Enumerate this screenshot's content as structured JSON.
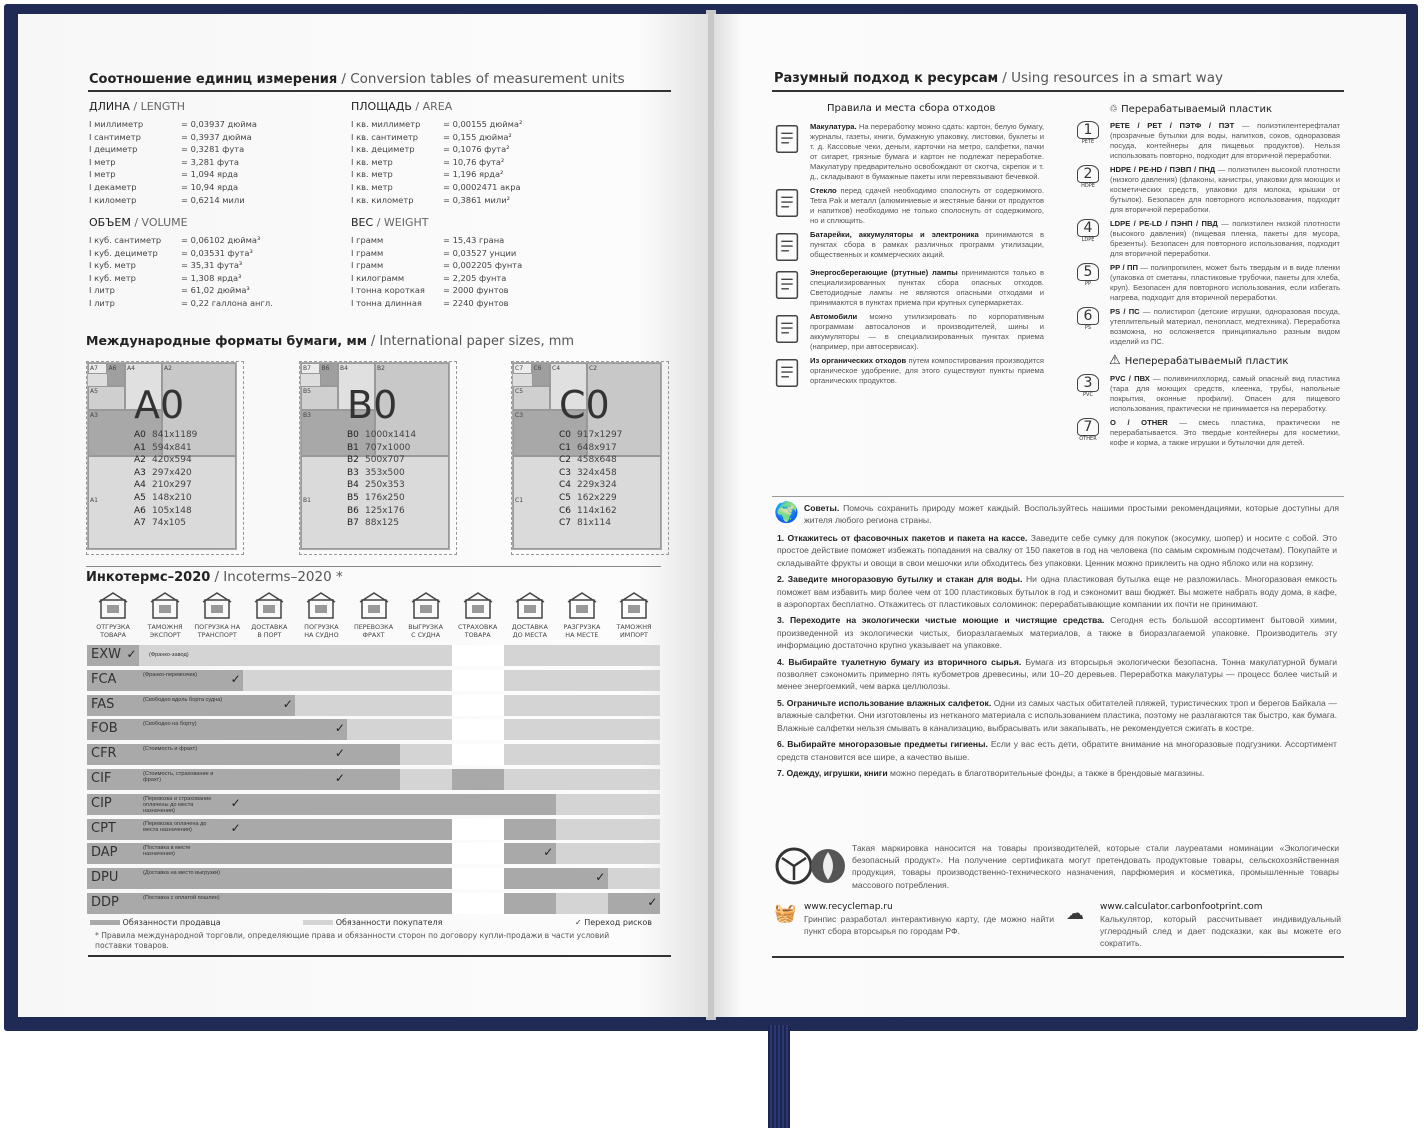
{
  "colors": {
    "cover": "#1f2a55",
    "seller": "#a9a9a9",
    "buyer": "#d4d4d4",
    "none": "#ffffff"
  },
  "left": {
    "title_ru": "Соотношение единиц измерения",
    "title_en": "/ Conversion tables of measurement units",
    "length": {
      "ru": "ДЛИНА",
      "en": "/ LENGTH",
      "rows": [
        [
          "I миллиметр",
          "= 0,03937 дюйма"
        ],
        [
          "I сантиметр",
          "= 0,3937 дюйма"
        ],
        [
          "I дециметр",
          "= 0,3281 фута"
        ],
        [
          "I метр",
          "= 3,281 фута"
        ],
        [
          "I метр",
          "= 1,094 ярда"
        ],
        [
          "I декаметр",
          "= 10,94 ярда"
        ],
        [
          "I километр",
          "= 0,6214 мили"
        ]
      ]
    },
    "area": {
      "ru": "ПЛОЩАДЬ",
      "en": "/ AREA",
      "rows": [
        [
          "I кв. миллиметр",
          "= 0,00155 дюйма²"
        ],
        [
          "I кв. сантиметр",
          "= 0,155 дюйма²"
        ],
        [
          "I кв. дециметр",
          "= 0,1076 фута²"
        ],
        [
          "I кв. метр",
          "= 10,76 фута²"
        ],
        [
          "I кв. метр",
          "= 1,196 ярда²"
        ],
        [
          "I кв. метр",
          "= 0,0002471 акра"
        ],
        [
          "I кв. километр",
          "= 0,3861 мили²"
        ]
      ]
    },
    "volume": {
      "ru": "ОБЪЕМ",
      "en": "/ VOLUME",
      "rows": [
        [
          "I куб. сантиметр",
          "= 0,06102 дюйма³"
        ],
        [
          "I куб. дециметр",
          "= 0,03531 фута³"
        ],
        [
          "I куб. метр",
          "= 35,31 фута³"
        ],
        [
          "I куб. метр",
          "= 1,308 ярда³"
        ],
        [
          "I литр",
          "= 61,02 дюйма³"
        ],
        [
          "I литр",
          "= 0,22 галлона англ."
        ]
      ]
    },
    "weight": {
      "ru": "ВЕС",
      "en": "/ WEIGHT",
      "rows": [
        [
          "I грамм",
          "= 15,43 грана"
        ],
        [
          "I грамм",
          "= 0,03527 унции"
        ],
        [
          "I грамм",
          "= 0,002205 фунта"
        ],
        [
          "I килограмм",
          "= 2,205 фунта"
        ],
        [
          "I тонна короткая",
          "= 2000 фунтов"
        ],
        [
          "I тонна длинная",
          "= 2240 фунтов"
        ]
      ]
    },
    "paper_title_ru": "Международные форматы бумаги, мм",
    "paper_title_en": "/ International paper sizes, mm",
    "papers": [
      {
        "letter": "A",
        "big": "A0",
        "sizes": [
          [
            "A0",
            "841x1189"
          ],
          [
            "A1",
            "594x841"
          ],
          [
            "A2",
            "420x594"
          ],
          [
            "A3",
            "297x420"
          ],
          [
            "A4",
            "210x297"
          ],
          [
            "A5",
            "148x210"
          ],
          [
            "A6",
            "105x148"
          ],
          [
            "A7",
            "74x105"
          ]
        ]
      },
      {
        "letter": "B",
        "big": "B0",
        "sizes": [
          [
            "B0",
            "1000x1414"
          ],
          [
            "B1",
            "707x1000"
          ],
          [
            "B2",
            "500x707"
          ],
          [
            "B3",
            "353x500"
          ],
          [
            "B4",
            "250x353"
          ],
          [
            "B5",
            "176x250"
          ],
          [
            "B6",
            "125x176"
          ],
          [
            "B7",
            "88x125"
          ]
        ]
      },
      {
        "letter": "C",
        "big": "C0",
        "sizes": [
          [
            "C0",
            "917x1297"
          ],
          [
            "C1",
            "648x917"
          ],
          [
            "C2",
            "458x648"
          ],
          [
            "C3",
            "324x458"
          ],
          [
            "C4",
            "229x324"
          ],
          [
            "C5",
            "162x229"
          ],
          [
            "C6",
            "114x162"
          ],
          [
            "C7",
            "81x114"
          ]
        ]
      }
    ],
    "inco_title_ru": "Инкотермс–2020",
    "inco_title_en": "/ Incoterms–2020 *",
    "steps": [
      [
        "ОТГРУЗКА",
        "ТОВАРА",
        "factory-icon"
      ],
      [
        "ТАМОЖНЯ",
        "ЭКСПОРТ",
        "customs-icon"
      ],
      [
        "ПОГРУЗКА НА",
        "ТРАНСПОРТ",
        "hand-truck-icon"
      ],
      [
        "ДОСТАВКА",
        "В ПОРТ",
        "truck-icon"
      ],
      [
        "ПОГРУЗКА",
        "НА СУДНО",
        "crane-icon"
      ],
      [
        "ПЕРЕВОЗКА",
        "ФРАХТ",
        "ship-icon"
      ],
      [
        "ВЫГРУЗКА",
        "С СУДНА",
        "crane-unload-icon"
      ],
      [
        "СТРАХОВКА",
        "ТОВАРА",
        "umbrella-icon"
      ],
      [
        "ДОСТАВКА",
        "ДО МЕСТА",
        "truck-icon"
      ],
      [
        "РАЗГРУЗКА",
        "НА МЕСТЕ",
        "boxes-icon"
      ],
      [
        "ТАМОЖНЯ",
        "ИМПОРТ",
        "customs-icon"
      ]
    ],
    "terms": [
      {
        "code": "EXW",
        "desc": "(Франко-завод)",
        "cells": "sbbbbbbwbbb",
        "risk": 1
      },
      {
        "code": "FCA",
        "desc": "(Франко-перевозчик)",
        "cells": "sssbbbbwbbb",
        "risk": 3
      },
      {
        "code": "FAS",
        "desc": "(Свободно вдоль борта судна)",
        "cells": "ssssbbbwbbb",
        "risk": 4
      },
      {
        "code": "FOB",
        "desc": "(Свободно на борту)",
        "cells": "sssssbbwbbb",
        "risk": 5
      },
      {
        "code": "CFR",
        "desc": "(Стоимость и фрахт)",
        "cells": "ssssssbwbbb",
        "risk": 5
      },
      {
        "code": "CIF",
        "desc": "(Стоимость, страхование и фрахт)",
        "cells": "ssssssbsbbb",
        "risk": 5
      },
      {
        "code": "CIP",
        "desc": "(Перевозка и страхование оплачены до места назначения)",
        "cells": "sssssssssbb",
        "risk": 3
      },
      {
        "code": "CPT",
        "desc": "(Перевозка оплачена до места назначения)",
        "cells": "ssssssswsbb",
        "risk": 3
      },
      {
        "code": "DAP",
        "desc": "(Поставка в месте назначения)",
        "cells": "ssssssswsbb",
        "risk": 9
      },
      {
        "code": "DPU",
        "desc": "(Доставка на место выгрузки)",
        "cells": "ssssssswssb",
        "risk": 10
      },
      {
        "code": "DDP",
        "desc": "(Поставка с оплатой пошлин)",
        "cells": "ssssssswsbs",
        "risk": 11
      }
    ],
    "legend": {
      "seller": "Обязанности продавца",
      "buyer": "Обязанности покупателя",
      "risk": "✓ Переход рисков"
    },
    "footnote": "* Правила международной торговли, определяющие права и обязанности сторон по договору купли-продажи в части условий поставки товаров."
  },
  "right": {
    "title_ru": "Разумный подход к ресурсам",
    "title_en": "/ Using resources in a smart way",
    "waste_title": "Правила и места сбора отходов",
    "waste": [
      {
        "icon": "paper-icon",
        "bold": "Макулатура.",
        "text": " На переработку можно сдать: картон, белую бумагу, журналы, газеты, книги, бумажную упаковку, листовки, буклеты и т. д. Кассовые чеки, деньги, карточки на метро, салфетки, пачки от сигарет, грязные бумага и картон не подлежат переработке. Макулатуру предварительно освобождают от скотча, скрепок и т. д., складывают в бумажные пакеты или перевязывают бечевкой."
      },
      {
        "icon": "bottles-icon",
        "bold": "Стекло",
        "text": " перед сдачей необходимо сполоснуть от содержимого. Tetra Pak и металл (алюминиевые и жестяные банки от продуктов и напитков) необходимо не только сполоснуть от содержимого, но и сплющить."
      },
      {
        "icon": "battery-icon",
        "bold": "Батарейки, аккумуляторы и электроника",
        "text": " принимаются в пунктах сбора в рамках различных программ утилизации, общественных и коммерческих акций."
      },
      {
        "icon": "lamp-icon",
        "bold": "Энергосберегающие (ртутные) лампы",
        "text": " принимаются только в специализированных пунктах сбора опасных отходов. Светодиодные лампы не являются опасными отходами и принимаются в пунктах приема при крупных супермаркетах."
      },
      {
        "icon": "car-icon",
        "bold": "Автомобили",
        "text": " можно утилизировать по корпоративным программам автосалонов и производителей, шины и аккумуляторы — в специализированных пунктах приема (например, при автосервисах)."
      },
      {
        "icon": "banana-icon",
        "bold": "Из органических отходов",
        "text": " путем компостирования производится органическое удобрение, для этого существуют пункты приема органических продуктов."
      }
    ],
    "plastic_title": "Перерабатываемый пластик",
    "plastics": [
      {
        "num": "1",
        "code": "PETE",
        "bold": "PETE / PET / ПЭТФ / ПЭТ",
        "text": " — полиэтилентерефталат (прозрачные бутылки для воды, напитков, соков, одноразовая посуда, контейнеры для пищевых продуктов). Нельзя использовать повторно, подходит для вторичной переработки."
      },
      {
        "num": "2",
        "code": "HDPE",
        "bold": "HDPE / PE-HD / ПЭВП / ПНД",
        "text": " — полиэтилен высокой плотности (низкого давления) (флаконы, канистры, упаковки для моющих и косметических средств, упаковки для молока, крышки от бутылок). Безопасен для повторного использования, подходит для вторичной переработки."
      },
      {
        "num": "4",
        "code": "LDPE",
        "bold": "LDPE / PE-LD / ПЭНП / ПВД",
        "text": " — полиэтилен низкой плотности (высокого давления) (пищевая пленка, пакеты для мусора, брезенты). Безопасен для повторного использования, подходит для вторичной переработки."
      },
      {
        "num": "5",
        "code": "PP",
        "bold": "PP / ПП",
        "text": " — полипропилен, может быть твердым и в виде пленки (упаковка от сметаны, пластиковые трубочки, пакеты для хлеба, круп). Безопасен для повторного использования, если избегать нагрева, подходит для вторичной переработки."
      },
      {
        "num": "6",
        "code": "PS",
        "bold": "PS / ПС",
        "text": " — полистирол (детские игрушки, одноразовая посуда, утеплительный материал, пенопласт, медтехника). Переработка возможна, но осложняется принципиально разным видом изделий из ПС."
      }
    ],
    "nonplastic_title": "Неперерабатываемый пластик",
    "nonplastics": [
      {
        "num": "3",
        "code": "PVC",
        "bold": "PVC / ПВХ",
        "text": " — поливинилхлорид, самый опасный вид пластика (тара для моющих средств, клеенка, трубы, напольные покрытия, оконные профили). Опасен для пищевого использования, практически не принимается на переработку."
      },
      {
        "num": "7",
        "code": "OTHER",
        "bold": "O / OTHER",
        "text": " — смесь пластика, практически не перерабатывается. Это твердые контейнеры для косметики, кофе и корма, а также игрушки и бутылочки для детей."
      }
    ],
    "advice_bold": "Советы.",
    "advice_text": " Помочь сохранить природу может каждый. Воспользуйтесь нашими простыми рекомендациями, которые доступны для жителя любого региона страны.",
    "tips": [
      {
        "bold": "1. Откажитесь от фасовочных пакетов и пакета на кассе.",
        "text": " Заведите себе сумку для покупок (экосумку, шопер) и носите с собой. Это простое действие поможет избежать попадания на свалку от 150 пакетов в год на человека (по самым скромным подсчетам). Покупайте и складывайте фрукты и овощи в свои мешочки или обходитесь без упаковки. Ценник можно приклеить на одно яблоко или на корзину."
      },
      {
        "bold": "2. Заведите многоразовую бутылку и стакан для воды.",
        "text": " Ни одна пластиковая бутылка еще не разложилась. Многоразовая емкость поможет вам избавить мир более чем от 100 пластиковых бутылок в год и сэкономит ваш бюджет. Вы можете набрать воду дома, в кафе, в аэропортах бесплатно. Откажитесь от пластиковых соломинок: перерабатывающие компании их почти не принимают."
      },
      {
        "bold": "3. Переходите на экологически чистые моющие и чистящие средства.",
        "text": " Сегодня есть большой ассортимент бытовой химии, произведенной из экологически чистых, биоразлагаемых материалов, а также в биоразлагаемой упаковке. Производитель эту информацию достаточно крупно указывает на упаковке."
      },
      {
        "bold": "4. Выбирайте туалетную бумагу из вторичного сырья.",
        "text": " Бумага из вторсырья экологически безопасна. Тонна макулатурной бумаги позволяет сэкономить примерно пять кубометров древесины, или 10–20 деревьев. Переработка макулатуры — процесс более чистый и менее энергоемкий, чем варка целлюлозы."
      },
      {
        "bold": "5. Ограничьте использование влажных салфеток.",
        "text": " Одни из самых частых обитателей пляжей, туристических троп и берегов Байкала — влажные салфетки. Они изготовлены из нетканого материала с использованием пластика, поэтому не разлагаются так быстро, как бумага. Влажные салфетки нельзя смывать в канализацию, выбрасывать или закапывать, не рекомендуется сжигать в костре."
      },
      {
        "bold": "6. Выбирайте многоразовые предметы гигиены.",
        "text": " Если у вас есть дети, обратите внимание на многоразовые подгузники. Ассортимент средств становится все шире, а качество выше."
      },
      {
        "bold": "7. Одежду, игрушки, книги",
        "text": " можно передать в благотворительные фонды, а также в брендовые магазины."
      }
    ],
    "ecolabel_text": "Такая маркировка наносится на товары производителей, которые стали лауреатами номинации «Экологически безопасный продукт». На получение сертификата могут претендовать продуктовые товары, сельскохозяйственная продукция, товары производственно-технического назначения, парфюмерия и косметика, промышленные товары массового потребления.",
    "link1": {
      "url": "www.recyclemap.ru",
      "text": "Гринпис разработал интерактивную карту, где можно найти пункт сбора вторсырья по городам РФ."
    },
    "link2": {
      "url": "www.calculator.carbonfootprint.com",
      "text": "Калькулятор, который рассчитывает индивидуальный углеродный след и дает подсказки, как вы можете его сократить."
    }
  }
}
